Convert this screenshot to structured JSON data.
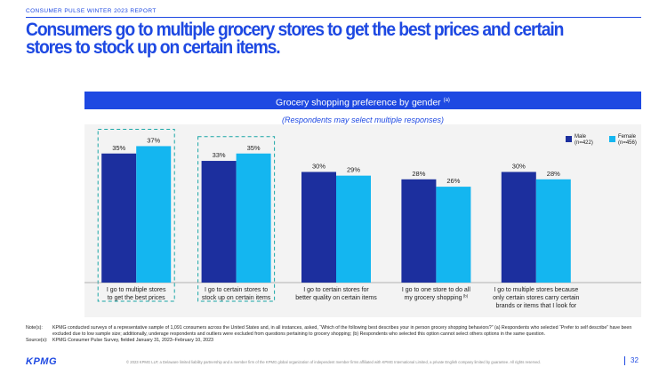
{
  "header": {
    "report_label": "CONSUMER PULSE WINTER 2023 REPORT",
    "headline": "Consumers go to multiple grocery stores to get the best prices and certain stores to stock up on certain items."
  },
  "chart_banner": {
    "title": "Grocery shopping preference by gender",
    "footnote_mark": "(a)"
  },
  "chart_subtitle": "(Respondents may select multiple responses)",
  "chart_data": {
    "type": "bar",
    "title": "Grocery shopping preference by gender",
    "subtitle": "(Respondents may select multiple responses)",
    "categories": [
      [
        "I go to multiple stores",
        "to get the best prices"
      ],
      [
        "I go to certain stores to",
        "stock up on certain items"
      ],
      [
        "I go to certain stores for",
        "better quality on certain items"
      ],
      [
        "I go to one store to do all",
        "my grocery shopping"
      ],
      [
        "I go to multiple stores because",
        "only certain stores carry certain",
        "brands or items that I look for"
      ]
    ],
    "category_footnotes": [
      "",
      "",
      "",
      "(b)",
      ""
    ],
    "series": [
      {
        "name": "Male",
        "sample": "(n=422)",
        "color": "#1c2f9e",
        "values": [
          35,
          33,
          30,
          28,
          30
        ],
        "labels": [
          "35%",
          "33%",
          "30%",
          "28%",
          "30%"
        ]
      },
      {
        "name": "Female",
        "sample": "(n=456)",
        "color": "#14b6f0",
        "values": [
          37,
          35,
          29,
          26,
          28
        ],
        "labels": [
          "37%",
          "35%",
          "29%",
          "26%",
          "28%"
        ]
      }
    ],
    "ylim": [
      0,
      40
    ],
    "highlighted_categories": [
      0,
      1
    ],
    "legend_position": "top-right",
    "grid": false
  },
  "notes": [
    {
      "key": "Note(s):",
      "text": "KPMG conducted surveys of a representative sample of 1,091 consumers across the United States and, in all instances, asked, “Which of the following best describes your in person grocery shopping behaviors?” (a) Respondents who selected “Prefer to self describe” have been excluded due to low sample size; additionally, underage respondents and outliers were excluded from questions pertaining to grocery shopping; (b) Respondents who selected this option cannot select others options in the same question."
    },
    {
      "key": "Source(s):",
      "text": "KPMG Consumer Pulse Survey, fielded January 31, 2023–February 10, 2023"
    }
  ],
  "footer": {
    "logo": "KPMG",
    "copyright": "© 2023 KPMG LLP, a Delaware limited liability partnership and a member firm of the KPMG global organization of independent member firms affiliated with KPMG International Limited, a private English company limited by guarantee. All rights reserved.",
    "page_number": "32"
  }
}
